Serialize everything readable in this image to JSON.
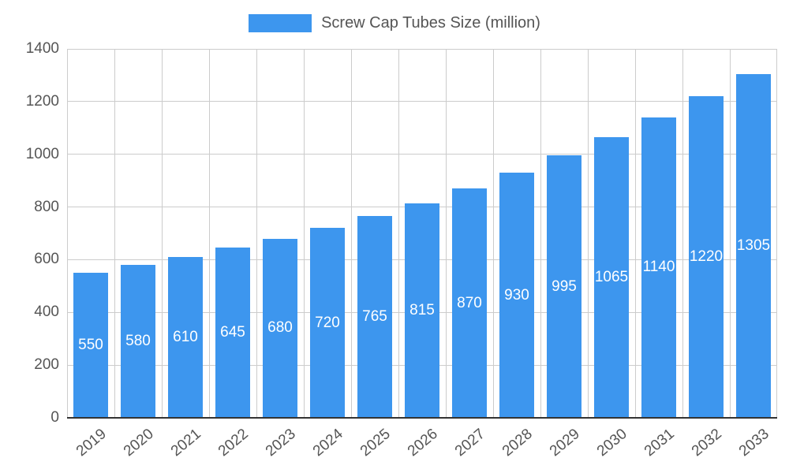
{
  "chart_data": {
    "type": "bar",
    "legend": {
      "label": "Screw Cap Tubes Size (million)",
      "position": "top"
    },
    "categories": [
      "2019",
      "2020",
      "2021",
      "2022",
      "2023",
      "2024",
      "2025",
      "2026",
      "2027",
      "2028",
      "2029",
      "2030",
      "2031",
      "2032",
      "2033"
    ],
    "values": [
      550,
      580,
      610,
      645,
      680,
      720,
      765,
      815,
      870,
      930,
      995,
      1065,
      1140,
      1220,
      1305
    ],
    "ylim": [
      0,
      1400
    ],
    "ytick_step": 200,
    "grid": true,
    "bar_color": "#3D96EE",
    "value_label_color": "#ffffff",
    "axis_text_color": "#555555",
    "grid_color": "#cccccc",
    "axis_line_color": "#333333"
  }
}
